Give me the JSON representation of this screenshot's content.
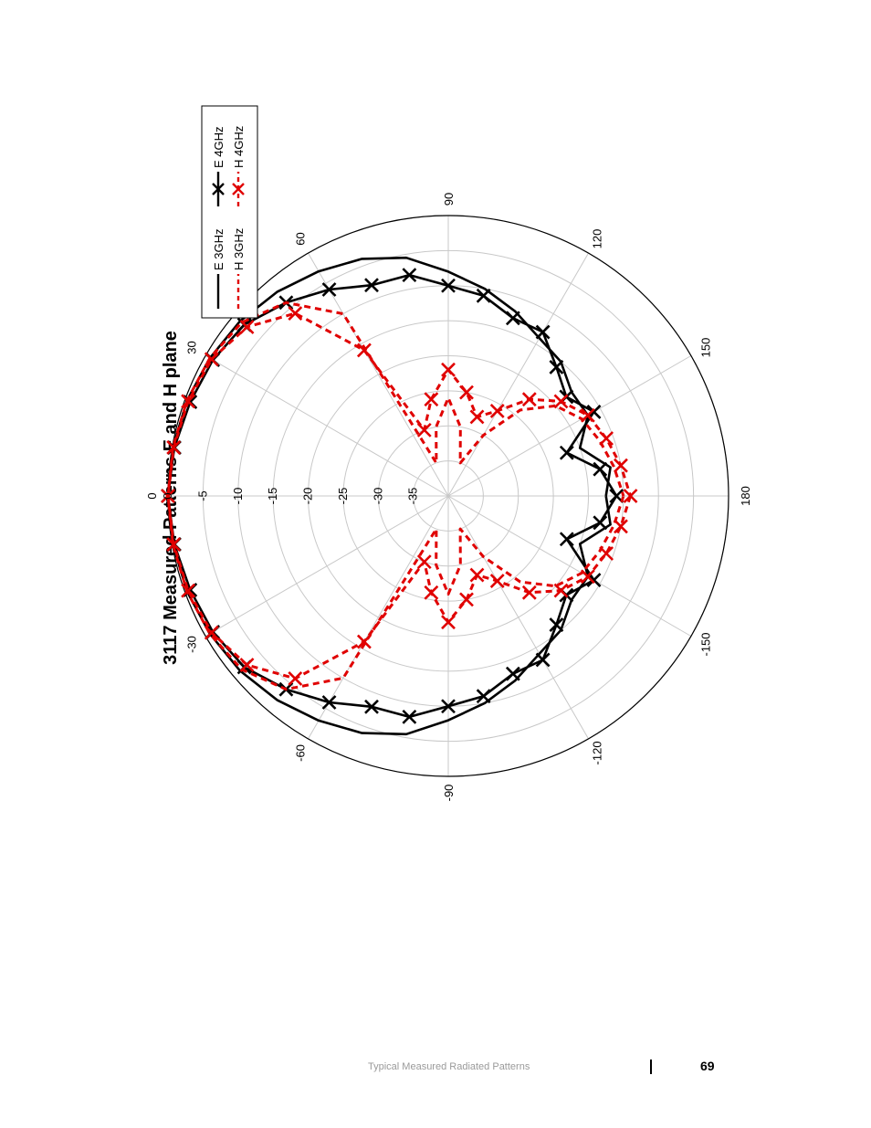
{
  "page": {
    "footer_text": "Typical Measured Radiated Patterns",
    "page_number": "69"
  },
  "chart_data": {
    "type": "polar",
    "title": "3117 Measured Patterns E and H plane",
    "radial_ticks": [
      "0",
      "-5",
      "-10",
      "-15",
      "-20",
      "-25",
      "-30",
      "-35"
    ],
    "radial_range": [
      -40,
      0
    ],
    "angle_labels": [
      "0",
      "30",
      "60",
      "90",
      "120",
      "150",
      "180",
      "-150",
      "-120",
      "-90",
      "-60",
      "-30"
    ],
    "angle_values": [
      0,
      30,
      60,
      90,
      120,
      150,
      180,
      -150,
      -120,
      -90,
      -60,
      -30
    ],
    "grid": true,
    "legend_position": "top-right",
    "series": [
      {
        "name": "E 3GHz",
        "color": "#000000",
        "dashed": false,
        "markers": false,
        "points": [
          [
            -180,
            -17.5
          ],
          [
            -170,
            -16.5
          ],
          [
            -160,
            -20
          ],
          [
            -150,
            -17
          ],
          [
            -140,
            -17
          ],
          [
            -130,
            -15
          ],
          [
            -120,
            -14
          ],
          [
            -110,
            -12
          ],
          [
            -100,
            -10
          ],
          [
            -90,
            -8
          ],
          [
            -80,
            -5.5
          ],
          [
            -70,
            -4
          ],
          [
            -60,
            -3
          ],
          [
            -50,
            -2
          ],
          [
            -40,
            -1.2
          ],
          [
            -30,
            -0.7
          ],
          [
            -20,
            -0.3
          ],
          [
            -10,
            -0.1
          ],
          [
            0,
            0
          ],
          [
            10,
            -0.1
          ],
          [
            20,
            -0.3
          ],
          [
            30,
            -0.7
          ],
          [
            40,
            -1.2
          ],
          [
            50,
            -2
          ],
          [
            60,
            -3
          ],
          [
            70,
            -4
          ],
          [
            80,
            -5.5
          ],
          [
            90,
            -8
          ],
          [
            100,
            -10
          ],
          [
            110,
            -12
          ],
          [
            120,
            -14
          ],
          [
            130,
            -15
          ],
          [
            140,
            -17
          ],
          [
            150,
            -17
          ],
          [
            160,
            -20
          ],
          [
            170,
            -16.5
          ],
          [
            180,
            -17.5
          ]
        ]
      },
      {
        "name": "E 4GHz",
        "color": "#000000",
        "dashed": false,
        "markers": true,
        "points": [
          [
            -180,
            -16
          ],
          [
            -170,
            -18
          ],
          [
            -160,
            -22
          ],
          [
            -150,
            -16
          ],
          [
            -140,
            -18
          ],
          [
            -130,
            -16
          ],
          [
            -120,
            -13
          ],
          [
            -110,
            -13
          ],
          [
            -100,
            -11
          ],
          [
            -90,
            -10
          ],
          [
            -80,
            -8
          ],
          [
            -70,
            -8
          ],
          [
            -60,
            -6
          ],
          [
            -50,
            -4
          ],
          [
            -40,
            -2
          ],
          [
            -30,
            -1.2
          ],
          [
            -20,
            -0.8
          ],
          [
            -10,
            -0.3
          ],
          [
            0,
            0
          ],
          [
            10,
            -0.3
          ],
          [
            20,
            -0.8
          ],
          [
            30,
            -1.2
          ],
          [
            40,
            -2
          ],
          [
            50,
            -4
          ],
          [
            60,
            -6
          ],
          [
            70,
            -8
          ],
          [
            80,
            -8
          ],
          [
            90,
            -10
          ],
          [
            100,
            -11
          ],
          [
            110,
            -13
          ],
          [
            120,
            -13
          ],
          [
            130,
            -16
          ],
          [
            140,
            -18
          ],
          [
            150,
            -16
          ],
          [
            160,
            -22
          ],
          [
            170,
            -18
          ],
          [
            180,
            -16
          ]
        ]
      },
      {
        "name": "H 3GHz",
        "color": "#e00000",
        "dashed": true,
        "markers": false,
        "points": [
          [
            -180,
            -15
          ],
          [
            -170,
            -16
          ],
          [
            -160,
            -17
          ],
          [
            -150,
            -18
          ],
          [
            -140,
            -20
          ],
          [
            -130,
            -24
          ],
          [
            -120,
            -30
          ],
          [
            -110,
            -35
          ],
          [
            -100,
            -30
          ],
          [
            -90,
            -26
          ],
          [
            -80,
            -30
          ],
          [
            -70,
            -35
          ],
          [
            -60,
            -10
          ],
          [
            -50,
            -4
          ],
          [
            -40,
            -1.5
          ],
          [
            -30,
            -0.7
          ],
          [
            -20,
            -0.3
          ],
          [
            -10,
            -0.1
          ],
          [
            0,
            0
          ],
          [
            10,
            -0.1
          ],
          [
            20,
            -0.3
          ],
          [
            30,
            -0.7
          ],
          [
            40,
            -1.5
          ],
          [
            50,
            -4
          ],
          [
            60,
            -10
          ],
          [
            70,
            -35
          ],
          [
            80,
            -30
          ],
          [
            90,
            -26
          ],
          [
            100,
            -30
          ],
          [
            110,
            -35
          ],
          [
            120,
            -30
          ],
          [
            130,
            -24
          ],
          [
            140,
            -20
          ],
          [
            150,
            -18
          ],
          [
            160,
            -17
          ],
          [
            170,
            -16
          ],
          [
            180,
            -15
          ]
        ]
      },
      {
        "name": "H 4GHz",
        "color": "#e00000",
        "dashed": true,
        "markers": true,
        "points": [
          [
            -180,
            -14
          ],
          [
            -170,
            -15
          ],
          [
            -160,
            -16
          ],
          [
            -150,
            -17
          ],
          [
            -140,
            -19
          ],
          [
            -130,
            -22
          ],
          [
            -120,
            -26
          ],
          [
            -110,
            -28
          ],
          [
            -100,
            -25
          ],
          [
            -90,
            -22
          ],
          [
            -80,
            -26
          ],
          [
            -70,
            -30
          ],
          [
            -60,
            -16
          ],
          [
            -50,
            -6
          ],
          [
            -40,
            -2.5
          ],
          [
            -30,
            -1
          ],
          [
            -20,
            -0.5
          ],
          [
            -10,
            -0.2
          ],
          [
            0,
            0
          ],
          [
            10,
            -0.2
          ],
          [
            20,
            -0.5
          ],
          [
            30,
            -1
          ],
          [
            40,
            -2.5
          ],
          [
            50,
            -6
          ],
          [
            60,
            -16
          ],
          [
            70,
            -30
          ],
          [
            80,
            -26
          ],
          [
            90,
            -22
          ],
          [
            100,
            -25
          ],
          [
            110,
            -28
          ],
          [
            120,
            -26
          ],
          [
            130,
            -22
          ],
          [
            140,
            -19
          ],
          [
            150,
            -17
          ],
          [
            160,
            -16
          ],
          [
            170,
            -15
          ],
          [
            180,
            -14
          ]
        ]
      }
    ]
  }
}
